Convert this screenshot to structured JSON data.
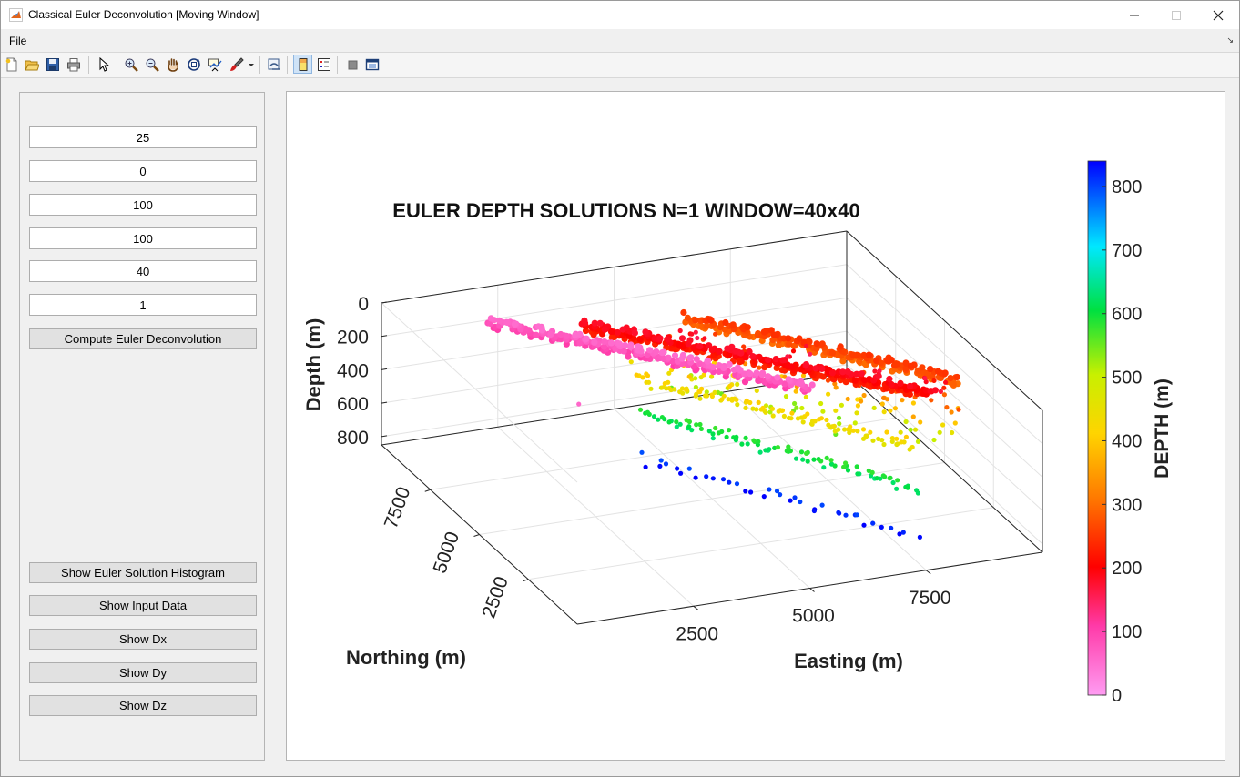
{
  "window": {
    "title": "Classical Euler Deconvolution [Moving Window]"
  },
  "menu": {
    "file": "File"
  },
  "toolbar": {
    "icons": [
      "new-file-icon",
      "open-folder-icon",
      "save-icon",
      "print-icon",
      "pointer-icon",
      "zoom-in-icon",
      "zoom-out-icon",
      "pan-icon",
      "rotate-3d-icon",
      "data-cursor-icon",
      "brush-icon",
      "brush-dropdown-icon",
      "link-plot-icon",
      "colorbar-icon",
      "legend-icon",
      "plot-tools-hide-icon",
      "plot-tools-show-icon"
    ]
  },
  "controls": {
    "fields": [
      "25",
      "0",
      "100",
      "100",
      "40",
      "1"
    ],
    "compute_label": "Compute Euler Deconvolution",
    "buttons": [
      "Show Euler Solution Histogram",
      "Show Input Data",
      "Show Dx",
      "Show Dy",
      "Show Dz"
    ]
  },
  "chart_data": {
    "type": "scatter",
    "title": "EULER DEPTH SOLUTIONS N=1 WINDOW=40x40",
    "xlabel": "Easting (m)",
    "ylabel": "Northing (m)",
    "zlabel": "Depth (m)",
    "x_ticks": [
      "2500",
      "5000",
      "7500"
    ],
    "y_ticks": [
      "2500",
      "5000",
      "7500"
    ],
    "z_ticks": [
      "0",
      "200",
      "400",
      "600",
      "800"
    ],
    "zlim": [
      0,
      850
    ],
    "z_reversed": true,
    "grid": true,
    "colorbar": {
      "label": "DEPTH (m)",
      "ticks": [
        "0",
        "100",
        "200",
        "300",
        "400",
        "500",
        "600",
        "700",
        "800"
      ],
      "range": [
        0,
        840
      ],
      "colormap": "pink-red-yellow-green-cyan-blue"
    },
    "series": [
      {
        "x": [
          1900,
          6450
        ],
        "y": [
          8900,
          3400
        ],
        "depth": 80,
        "approx_count": 260
      },
      {
        "x": [
          3950,
          9000
        ],
        "y": [
          9000,
          3300
        ],
        "depth": 205,
        "approx_count": 300
      },
      {
        "x": [
          6200,
          9950
        ],
        "y": [
          9200,
          4200
        ],
        "depth": 270,
        "approx_count": 220
      },
      {
        "x": [
          4600,
          8400
        ],
        "y": [
          8000,
          2700
        ],
        "depth": 430,
        "approx_count": 110
      },
      {
        "x": [
          4600,
          8150
        ],
        "y": [
          7600,
          2000
        ],
        "depth": 600,
        "approx_count": 90
      },
      {
        "x": [
          4400,
          7900
        ],
        "y": [
          7200,
          1600
        ],
        "depth": 820,
        "approx_count": 38
      }
    ]
  }
}
